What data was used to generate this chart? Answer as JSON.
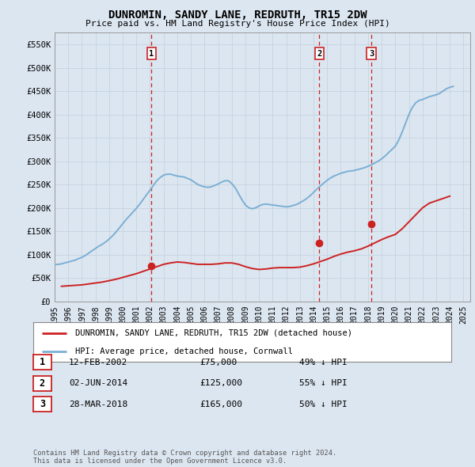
{
  "title": "DUNROMIN, SANDY LANE, REDRUTH, TR15 2DW",
  "subtitle": "Price paid vs. HM Land Registry's House Price Index (HPI)",
  "background_color": "#dce6f0",
  "ylim": [
    0,
    575000
  ],
  "yticks": [
    0,
    50000,
    100000,
    150000,
    200000,
    250000,
    300000,
    350000,
    400000,
    450000,
    500000,
    550000
  ],
  "ytick_labels": [
    "£0",
    "£50K",
    "£100K",
    "£150K",
    "£200K",
    "£250K",
    "£300K",
    "£350K",
    "£400K",
    "£450K",
    "£500K",
    "£550K"
  ],
  "xlim_start": 1995.0,
  "xlim_end": 2025.5,
  "xticks": [
    1995,
    1996,
    1997,
    1998,
    1999,
    2000,
    2001,
    2002,
    2003,
    2004,
    2005,
    2006,
    2007,
    2008,
    2009,
    2010,
    2011,
    2012,
    2013,
    2014,
    2015,
    2016,
    2017,
    2018,
    2019,
    2020,
    2021,
    2022,
    2023,
    2024,
    2025
  ],
  "hpi_color": "#7bafd4",
  "price_color": "#cc2222",
  "vline_color": "#cc2222",
  "grid_color": "#c5d4e0",
  "transactions": [
    {
      "date": 2002.11,
      "price": 75000,
      "label": "1"
    },
    {
      "date": 2014.42,
      "price": 125000,
      "label": "2"
    },
    {
      "date": 2018.24,
      "price": 165000,
      "label": "3"
    }
  ],
  "transaction_table": [
    {
      "num": "1",
      "date": "12-FEB-2002",
      "price": "£75,000",
      "hpi": "49% ↓ HPI"
    },
    {
      "num": "2",
      "date": "02-JUN-2014",
      "price": "£125,000",
      "hpi": "55% ↓ HPI"
    },
    {
      "num": "3",
      "date": "28-MAR-2018",
      "price": "£165,000",
      "hpi": "50% ↓ HPI"
    }
  ],
  "legend_label_price": "DUNROMIN, SANDY LANE, REDRUTH, TR15 2DW (detached house)",
  "legend_label_hpi": "HPI: Average price, detached house, Cornwall",
  "footer": "Contains HM Land Registry data © Crown copyright and database right 2024.\nThis data is licensed under the Open Government Licence v3.0.",
  "hpi_data_x": [
    1995.0,
    1995.25,
    1995.5,
    1995.75,
    1996.0,
    1996.25,
    1996.5,
    1996.75,
    1997.0,
    1997.25,
    1997.5,
    1997.75,
    1998.0,
    1998.25,
    1998.5,
    1998.75,
    1999.0,
    1999.25,
    1999.5,
    1999.75,
    2000.0,
    2000.25,
    2000.5,
    2000.75,
    2001.0,
    2001.25,
    2001.5,
    2001.75,
    2002.0,
    2002.25,
    2002.5,
    2002.75,
    2003.0,
    2003.25,
    2003.5,
    2003.75,
    2004.0,
    2004.25,
    2004.5,
    2004.75,
    2005.0,
    2005.25,
    2005.5,
    2005.75,
    2006.0,
    2006.25,
    2006.5,
    2006.75,
    2007.0,
    2007.25,
    2007.5,
    2007.75,
    2008.0,
    2008.25,
    2008.5,
    2008.75,
    2009.0,
    2009.25,
    2009.5,
    2009.75,
    2010.0,
    2010.25,
    2010.5,
    2010.75,
    2011.0,
    2011.25,
    2011.5,
    2011.75,
    2012.0,
    2012.25,
    2012.5,
    2012.75,
    2013.0,
    2013.25,
    2013.5,
    2013.75,
    2014.0,
    2014.25,
    2014.5,
    2014.75,
    2015.0,
    2015.25,
    2015.5,
    2015.75,
    2016.0,
    2016.25,
    2016.5,
    2016.75,
    2017.0,
    2017.25,
    2017.5,
    2017.75,
    2018.0,
    2018.25,
    2018.5,
    2018.75,
    2019.0,
    2019.25,
    2019.5,
    2019.75,
    2020.0,
    2020.25,
    2020.5,
    2020.75,
    2021.0,
    2021.25,
    2021.5,
    2021.75,
    2022.0,
    2022.25,
    2022.5,
    2022.75,
    2023.0,
    2023.25,
    2023.5,
    2023.75,
    2024.0,
    2024.25
  ],
  "hpi_data_y": [
    78000,
    79000,
    80000,
    82000,
    84000,
    86000,
    88000,
    91000,
    94000,
    98000,
    103000,
    108000,
    113000,
    118000,
    122000,
    127000,
    133000,
    140000,
    148000,
    157000,
    166000,
    175000,
    183000,
    191000,
    199000,
    208000,
    218000,
    228000,
    238000,
    248000,
    258000,
    265000,
    270000,
    272000,
    272000,
    270000,
    268000,
    267000,
    266000,
    263000,
    260000,
    255000,
    250000,
    247000,
    245000,
    244000,
    245000,
    248000,
    251000,
    255000,
    258000,
    258000,
    252000,
    243000,
    230000,
    217000,
    206000,
    200000,
    198000,
    200000,
    204000,
    207000,
    208000,
    207000,
    206000,
    205000,
    204000,
    203000,
    202000,
    203000,
    205000,
    207000,
    211000,
    215000,
    220000,
    226000,
    233000,
    240000,
    247000,
    253000,
    259000,
    264000,
    268000,
    271000,
    274000,
    276000,
    278000,
    279000,
    280000,
    282000,
    284000,
    286000,
    289000,
    292000,
    296000,
    300000,
    305000,
    311000,
    318000,
    325000,
    332000,
    345000,
    362000,
    381000,
    400000,
    415000,
    425000,
    430000,
    432000,
    435000,
    438000,
    440000,
    442000,
    445000,
    450000,
    455000,
    458000,
    460000
  ],
  "price_data_x": [
    1995.5,
    1996.0,
    1996.5,
    1997.0,
    1997.5,
    1998.0,
    1998.5,
    1999.0,
    1999.5,
    2000.0,
    2000.5,
    2001.0,
    2001.5,
    2002.0,
    2002.5,
    2003.0,
    2003.5,
    2004.0,
    2004.5,
    2005.0,
    2005.5,
    2006.0,
    2006.5,
    2007.0,
    2007.5,
    2008.0,
    2008.5,
    2009.0,
    2009.5,
    2010.0,
    2010.5,
    2011.0,
    2011.5,
    2012.0,
    2012.5,
    2013.0,
    2013.5,
    2014.0,
    2014.5,
    2015.0,
    2015.5,
    2016.0,
    2016.5,
    2017.0,
    2017.5,
    2018.0,
    2018.5,
    2019.0,
    2019.5,
    2020.0,
    2020.5,
    2021.0,
    2021.5,
    2022.0,
    2022.5,
    2023.0,
    2023.5,
    2024.0
  ],
  "price_data_y": [
    32000,
    33000,
    34000,
    35000,
    37000,
    39000,
    41000,
    44000,
    47000,
    51000,
    55000,
    59000,
    64000,
    69000,
    74000,
    79000,
    82000,
    84000,
    83000,
    81000,
    79000,
    79000,
    79000,
    80000,
    82000,
    82000,
    79000,
    74000,
    70000,
    68000,
    69000,
    71000,
    72000,
    72000,
    72000,
    73000,
    76000,
    80000,
    85000,
    90000,
    96000,
    101000,
    105000,
    108000,
    112000,
    118000,
    125000,
    132000,
    138000,
    143000,
    155000,
    170000,
    185000,
    200000,
    210000,
    215000,
    220000,
    225000
  ]
}
